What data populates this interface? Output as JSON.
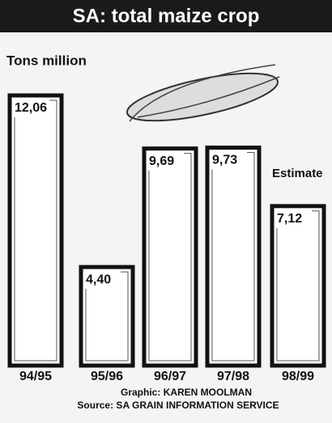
{
  "chart_data": {
    "type": "bar",
    "title": "SA: total maize crop",
    "subtitle": "Tons million",
    "categories": [
      "94/95",
      "95/96",
      "96/97",
      "97/98",
      "98/99"
    ],
    "values": [
      12.06,
      4.4,
      9.69,
      9.73,
      7.12
    ],
    "value_labels": [
      "12,06",
      "4,40",
      "9,69",
      "9,73",
      "7,12"
    ],
    "annotation": "Estimate",
    "credit": "Graphic: KAREN MOOLMAN",
    "source": "Source: SA GRAIN INFORMATION SERVICE",
    "color": "#ffffff"
  }
}
